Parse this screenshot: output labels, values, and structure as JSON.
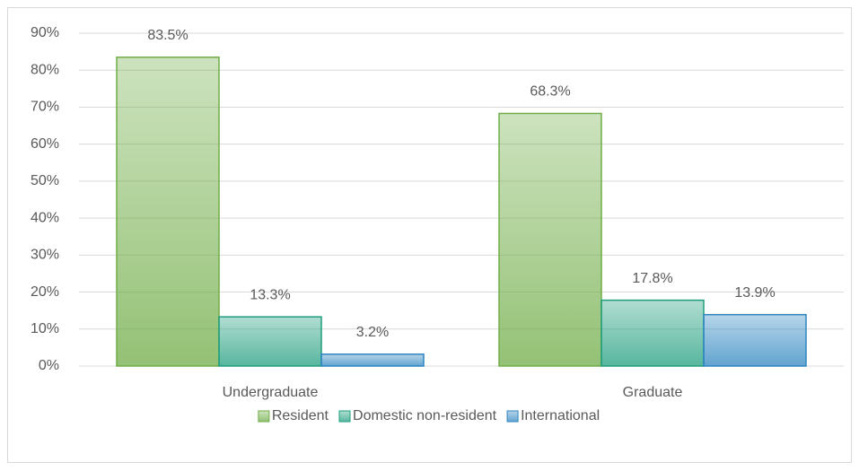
{
  "chart_data": {
    "type": "bar",
    "categories": [
      "Undergraduate",
      "Graduate"
    ],
    "series": [
      {
        "name": "Resident",
        "color": "#70ad47",
        "values": [
          83.5,
          68.3
        ],
        "value_labels": [
          "83.5%",
          "68.3%"
        ]
      },
      {
        "name": "Domestic non-resident",
        "color": "#1f9e7e",
        "values": [
          13.3,
          17.8
        ],
        "value_labels": [
          "13.3%",
          "17.8%"
        ]
      },
      {
        "name": "International",
        "color": "#2e86c1",
        "values": [
          3.2,
          13.9
        ],
        "value_labels": [
          "3.2%",
          "13.9%"
        ]
      }
    ],
    "ylim": [
      0,
      90
    ],
    "yticks": [
      {
        "value": 0,
        "label": "0%"
      },
      {
        "value": 10,
        "label": "10%"
      },
      {
        "value": 20,
        "label": "20%"
      },
      {
        "value": 30,
        "label": "30%"
      },
      {
        "value": 40,
        "label": "40%"
      },
      {
        "value": 50,
        "label": "50%"
      },
      {
        "value": 60,
        "label": "60%"
      },
      {
        "value": 70,
        "label": "70%"
      },
      {
        "value": 80,
        "label": "80%"
      },
      {
        "value": 90,
        "label": "90%"
      }
    ],
    "grid": true,
    "legend": "bottom"
  }
}
